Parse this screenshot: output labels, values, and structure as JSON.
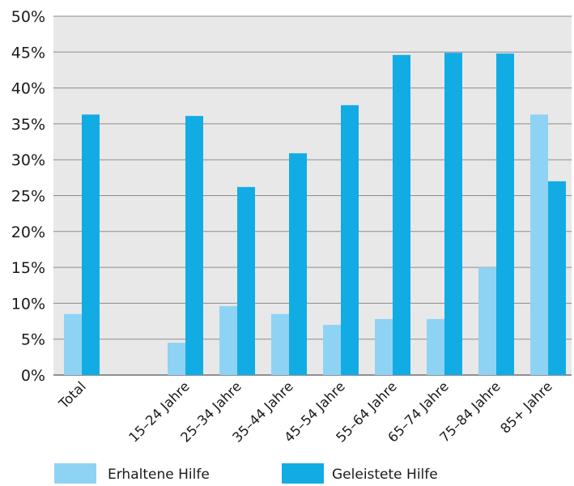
{
  "chart_data": {
    "type": "bar",
    "categories": [
      "Total",
      "",
      "15–24 Jahre",
      "25–34 Jahre",
      "35–44 Jahre",
      "45–54 Jahre",
      "55–64 Jahre",
      "65–74 Jahre",
      "75–84 Jahre",
      "85+ Jahre"
    ],
    "series": [
      {
        "name": "Erhaltene Hilfe",
        "values": [
          8.5,
          null,
          4.5,
          9.6,
          8.5,
          7.0,
          7.8,
          7.8,
          15.0,
          36.3
        ],
        "color": "#8fd3f4"
      },
      {
        "name": "Geleistete Hilfe",
        "values": [
          36.3,
          null,
          36.1,
          26.2,
          30.9,
          37.6,
          44.6,
          44.9,
          44.8,
          27.0
        ],
        "color": "#12ace4"
      }
    ],
    "yticks": [
      "0%",
      "5%",
      "10%",
      "15%",
      "20%",
      "25%",
      "30%",
      "35%",
      "40%",
      "45%",
      "50%"
    ],
    "ylim": [
      0,
      50
    ],
    "grid": true,
    "legend_position": "bottom",
    "plot_background": "#e8e8e8",
    "grid_color": "#8c8c8c"
  }
}
